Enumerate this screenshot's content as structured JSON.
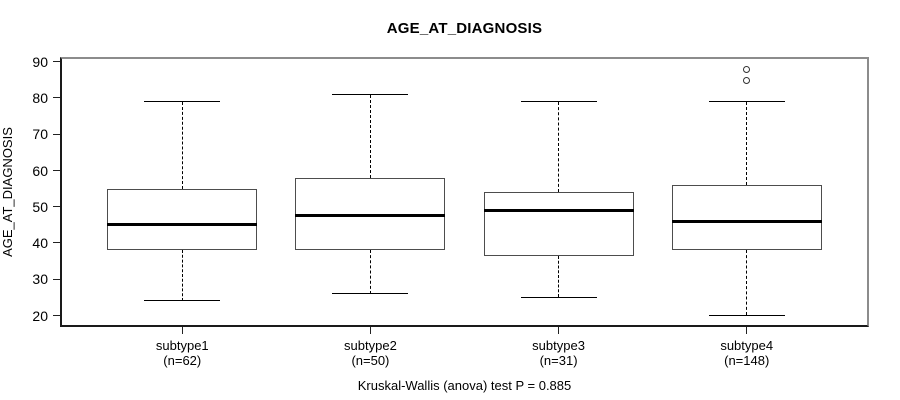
{
  "title": "AGE_AT_DIAGNOSIS",
  "y_axis": {
    "label": "AGE_AT_DIAGNOSIS"
  },
  "caption": "Kruskal-Wallis (anova) test P = 0.885",
  "chart_data": {
    "type": "boxplot",
    "title": "AGE_AT_DIAGNOSIS",
    "xlabel": "",
    "ylabel": "AGE_AT_DIAGNOSIS",
    "ylim": [
      20,
      90
    ],
    "yticks": [
      20,
      30,
      40,
      50,
      60,
      70,
      80,
      90
    ],
    "grid": false,
    "legend": null,
    "annotation": "Kruskal-Wallis (anova) test P = 0.885",
    "categories": [
      "subtype1",
      "subtype2",
      "subtype3",
      "subtype4"
    ],
    "groups": [
      {
        "label": "subtype1",
        "sublabel": "(n=62)",
        "n": 62,
        "whisker_low": 24,
        "q1": 38,
        "median": 45,
        "q3": 55,
        "whisker_high": 79,
        "outliers": []
      },
      {
        "label": "subtype2",
        "sublabel": "(n=50)",
        "n": 50,
        "whisker_low": 26,
        "q1": 38,
        "median": 47.5,
        "q3": 58,
        "whisker_high": 81,
        "outliers": []
      },
      {
        "label": "subtype3",
        "sublabel": "(n=31)",
        "n": 31,
        "whisker_low": 25,
        "q1": 36.5,
        "median": 49,
        "q3": 54,
        "whisker_high": 79,
        "outliers": []
      },
      {
        "label": "subtype4",
        "sublabel": "(n=148)",
        "n": 148,
        "whisker_low": 20,
        "q1": 38,
        "median": 46,
        "q3": 56,
        "whisker_high": 79,
        "outliers": [
          85,
          88
        ]
      }
    ],
    "colors": {
      "line": "#000000",
      "box_border": "#4d4d4d",
      "frame_light": "#8c8c8c",
      "frame_dark": "#1a1a1a",
      "text": "#000000",
      "background": "#ffffff"
    }
  }
}
